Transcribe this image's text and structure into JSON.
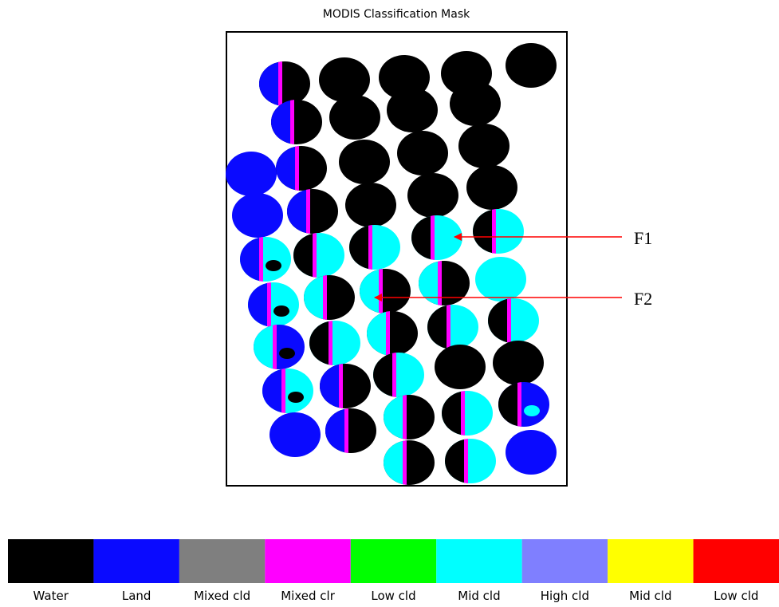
{
  "title": "MODIS Classification Mask",
  "annotations": [
    "F1",
    "F2"
  ],
  "legend": [
    {
      "label": "Water",
      "color": "#000000"
    },
    {
      "label": "Land",
      "color": "#0a0aff"
    },
    {
      "label": "Mixed cld",
      "color": "#7f7f7f"
    },
    {
      "label": "Mixed clr",
      "color": "#ff00ff"
    },
    {
      "label": "Low cld",
      "color": "#00ff00"
    },
    {
      "label": "Mid cld",
      "color": "#00ffff"
    },
    {
      "label": "High cld",
      "color": "#7f7fff"
    },
    {
      "label": "Mid cld",
      "color": "#ffff00"
    },
    {
      "label": "Low cld",
      "color": "#ff0000"
    }
  ]
}
